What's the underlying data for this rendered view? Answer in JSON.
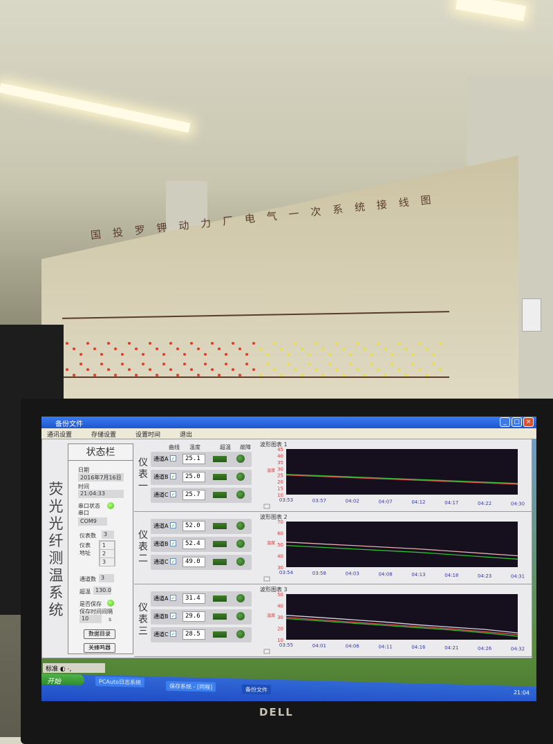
{
  "wall": {
    "title": "国投罗钾动力厂电气一次系统接线图"
  },
  "monitor": {
    "brand": "DELL"
  },
  "window": {
    "title": "备份文件",
    "menu": [
      "通讯设置",
      "存储设置",
      "设置时间",
      "退出"
    ],
    "app_title": "荧光光纤测温系统"
  },
  "status": {
    "header": "状态栏",
    "date_label": "日期",
    "date": "2016年7月16日",
    "time_label": "时间",
    "time": "21:04:33",
    "port_status_label": "串口状态",
    "port_label": "串口",
    "port": "COM9",
    "meter_count_label": "仪表数",
    "meter_count": "3",
    "meter_addr_label": "仪表地址",
    "meter_addrs": [
      "1",
      "2",
      "3"
    ],
    "channel_count_label": "通道数",
    "channel_count": "3",
    "over_temp_label": "超温",
    "over_temp": "130.0",
    "save_label": "是否保存",
    "save_interval_label": "保存时间间隔",
    "save_interval": "10",
    "save_interval_unit": "s",
    "data_dir_button": "数据目录",
    "buzzer_off_button": "关蜂鸣器"
  },
  "columns": {
    "curve": "曲线",
    "temp": "温度",
    "over": "超温",
    "fault": "故障"
  },
  "meters": [
    {
      "name": "仪表一",
      "channels": [
        {
          "name": "通道A",
          "value": "25.1"
        },
        {
          "name": "通道B",
          "value": "25.0"
        },
        {
          "name": "通道C",
          "value": "25.7"
        }
      ]
    },
    {
      "name": "仪表二",
      "channels": [
        {
          "name": "通道A",
          "value": "52.0"
        },
        {
          "name": "通道B",
          "value": "52.4"
        },
        {
          "name": "通道C",
          "value": "49.0"
        }
      ]
    },
    {
      "name": "仪表三",
      "channels": [
        {
          "name": "通道A",
          "value": "31.4"
        },
        {
          "name": "通道B",
          "value": "29.6"
        },
        {
          "name": "通道C",
          "value": "28.5"
        }
      ]
    }
  ],
  "chart_data": [
    {
      "type": "line",
      "title": "波形图表 1",
      "ylabel": "温度",
      "ylim": [
        10,
        45
      ],
      "yticks": [
        10,
        15,
        20,
        25,
        30,
        35,
        40,
        45
      ],
      "xticks": [
        "03:53",
        "03:57",
        "04:02",
        "04:07",
        "04:12",
        "04:17",
        "04:22",
        "04:30"
      ],
      "series": [
        {
          "color": "#e05050",
          "values": [
            25,
            24,
            23,
            22,
            21,
            20,
            19,
            18
          ]
        },
        {
          "color": "#30c030",
          "values": [
            25.5,
            24.6,
            23.6,
            22.6,
            21.6,
            20.6,
            19.6,
            18.6
          ]
        }
      ]
    },
    {
      "type": "line",
      "title": "波形图表 2",
      "ylabel": "温度",
      "ylim": [
        30,
        70
      ],
      "yticks": [
        30,
        40,
        50,
        60,
        70
      ],
      "xticks": [
        "03:54",
        "03:58",
        "04:03",
        "04:08",
        "04:13",
        "04:18",
        "04:23",
        "04:31"
      ],
      "series": [
        {
          "color": "#e8b0b0",
          "values": [
            52,
            50.5,
            49,
            47.5,
            46,
            44,
            42,
            40
          ]
        },
        {
          "color": "#30c030",
          "values": [
            49,
            47.5,
            46,
            44.5,
            43,
            41,
            39,
            37
          ]
        }
      ]
    },
    {
      "type": "line",
      "title": "波形图表 3",
      "ylabel": "温度",
      "ylim": [
        10,
        50
      ],
      "yticks": [
        10,
        20,
        30,
        40,
        50
      ],
      "xticks": [
        "03:55",
        "04:01",
        "04:06",
        "04:11",
        "04:16",
        "04:21",
        "04:26",
        "04:32"
      ],
      "series": [
        {
          "color": "#d8d8e8",
          "values": [
            31.4,
            29.5,
            27.5,
            25.5,
            23,
            21,
            19,
            16
          ]
        },
        {
          "color": "#e05050",
          "values": [
            29.6,
            27.5,
            25.5,
            23.5,
            21.5,
            19.5,
            17,
            14.5
          ]
        },
        {
          "color": "#30c030",
          "values": [
            28.5,
            26.5,
            24.5,
            22.5,
            20.5,
            18.5,
            16,
            13
          ]
        }
      ]
    }
  ],
  "taskbar": {
    "lang": "标准",
    "start": "开始",
    "tasks": [
      "PCAuto日志系统",
      "保存系统 - [同程]",
      "备份文件"
    ],
    "clock": "21:04"
  }
}
